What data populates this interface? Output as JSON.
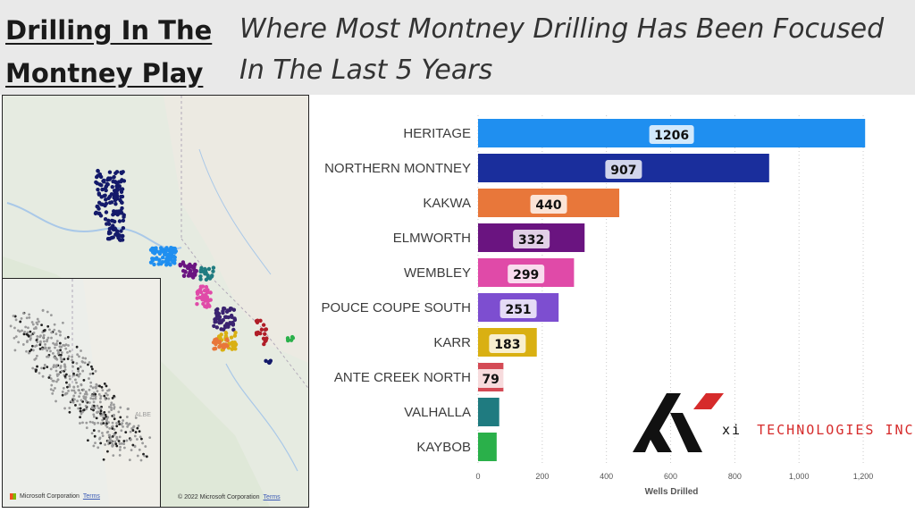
{
  "header": {
    "title_line1": "Drilling In The ",
    "title_line2": "Montney Play",
    "subtitle_line1": "Where Most Montney Drilling Has Been Focused",
    "subtitle_line2": "In The Last 5 Years"
  },
  "map": {
    "copyright": "© 2022 Microsoft Corporation",
    "terms": "Terms",
    "inset_copyright": "Microsoft Corporation",
    "inset_label": "ALBE"
  },
  "logo": {
    "prefix": "xi",
    "name": "TECHNOLOGIES INC.",
    "colors": {
      "black": "#111111",
      "red": "#d62b2b"
    }
  },
  "chart_data": {
    "type": "bar",
    "orientation": "horizontal",
    "categories": [
      "HERITAGE",
      "NORTHERN MONTNEY",
      "KAKWA",
      "ELMWORTH",
      "WEMBLEY",
      "POUCE COUPE SOUTH",
      "KARR",
      "ANTE CREEK NORTH",
      "VALHALLA",
      "KAYBOB"
    ],
    "values": [
      1206,
      907,
      440,
      332,
      299,
      251,
      183,
      79,
      66,
      58
    ],
    "data_labels": [
      "1206",
      "907",
      "440",
      "332",
      "299",
      "251",
      "183",
      "79",
      "",
      ""
    ],
    "colors": [
      "#1f8ff0",
      "#1a2e9c",
      "#e8773a",
      "#6a1480",
      "#e04aa8",
      "#7d4ed0",
      "#d9b012",
      "#d44a55",
      "#1f7b80",
      "#2ab04a"
    ],
    "xlabel": "Wells Drilled",
    "ylabel": "",
    "xlim": [
      0,
      1250
    ],
    "xticks": [
      0,
      200,
      400,
      600,
      800,
      1000,
      1200
    ],
    "xtick_labels": [
      "0",
      "200",
      "400",
      "600",
      "800",
      "1,000",
      "1,200"
    ],
    "grid": true
  }
}
